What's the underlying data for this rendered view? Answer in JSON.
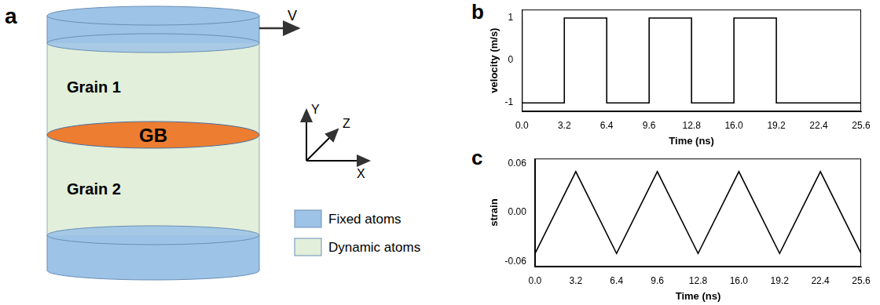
{
  "diagram": {
    "panel": "a",
    "velocity_label": "V",
    "fixed_color": "#9dc3e6",
    "dynamic_color": "#e2efda",
    "grain_labels": [
      "Grain 1",
      "Grain 2"
    ],
    "gb": {
      "label": "GB",
      "color": "#ed7d31"
    },
    "axes": {
      "x": "X",
      "y": "Y",
      "z": "Z"
    },
    "legend": [
      {
        "label": "Fixed atoms",
        "color": "#9dc3e6"
      },
      {
        "label": "Dynamic atoms",
        "color": "#e2efda"
      }
    ]
  },
  "chart_data": [
    {
      "panel": "b",
      "type": "step",
      "x": [
        0,
        3.2,
        6.4,
        9.6,
        12.8,
        16.0,
        19.2,
        22.4,
        25.6
      ],
      "values": [
        1,
        -1,
        1,
        -1,
        1,
        -1,
        1,
        -1,
        -1
      ],
      "color": "#000000",
      "xlabel": "Time (ns)",
      "ylabel": "velocity (m/s)",
      "xlim": [
        0,
        25.6
      ],
      "ylim": [
        -1.2,
        1.2
      ],
      "xticks": [
        {
          "value": 0,
          "label": "0.0"
        },
        3.2,
        6.4,
        9.6,
        12.8,
        {
          "value": 16,
          "label": "16.0"
        },
        19.2,
        22.4,
        25.6
      ],
      "yticks": [
        -1,
        0,
        1
      ],
      "grid": false
    },
    {
      "panel": "c",
      "type": "line",
      "x": [
        0,
        3.2,
        6.4,
        9.6,
        12.8,
        16.0,
        19.2,
        22.4,
        25.6
      ],
      "values": [
        -0.05,
        0.05,
        -0.05,
        0.05,
        -0.05,
        0.05,
        -0.05,
        0.05,
        -0.05
      ],
      "color": "#000000",
      "xlabel": "Time (ns)",
      "ylabel": "strain",
      "xlim": [
        0,
        25.6
      ],
      "ylim": [
        -0.066,
        0.066
      ],
      "xticks": [
        {
          "value": 0,
          "label": "0.0"
        },
        3.2,
        6.4,
        9.6,
        12.8,
        {
          "value": 16,
          "label": "16.0"
        },
        19.2,
        22.4,
        25.6
      ],
      "yticks": [
        -0.06,
        {
          "value": 0,
          "label": "0.00"
        },
        0.06
      ],
      "grid": false
    }
  ]
}
